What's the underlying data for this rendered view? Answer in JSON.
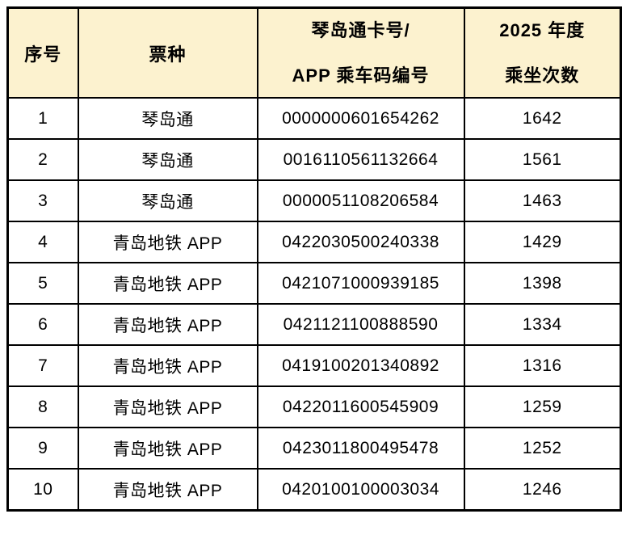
{
  "table": {
    "header": {
      "serial": "序号",
      "ticket_type": "票种",
      "card_number_line1": "琴岛通卡号/",
      "card_number_line2": "APP 乘车码编号",
      "ride_count_line1": "2025 年度",
      "ride_count_line2": "乘坐次数"
    },
    "rows": [
      {
        "serial": "1",
        "ticket_type": "琴岛通",
        "card_number": "0000000601654262",
        "ride_count": "1642"
      },
      {
        "serial": "2",
        "ticket_type": "琴岛通",
        "card_number": "0016110561132664",
        "ride_count": "1561"
      },
      {
        "serial": "3",
        "ticket_type": "琴岛通",
        "card_number": "0000051108206584",
        "ride_count": "1463"
      },
      {
        "serial": "4",
        "ticket_type": "青岛地铁 APP",
        "card_number": "0422030500240338",
        "ride_count": "1429"
      },
      {
        "serial": "5",
        "ticket_type": "青岛地铁 APP",
        "card_number": "0421071000939185",
        "ride_count": "1398"
      },
      {
        "serial": "6",
        "ticket_type": "青岛地铁 APP",
        "card_number": "0421121100888590",
        "ride_count": "1334"
      },
      {
        "serial": "7",
        "ticket_type": "青岛地铁 APP",
        "card_number": "0419100201340892",
        "ride_count": "1316"
      },
      {
        "serial": "8",
        "ticket_type": "青岛地铁 APP",
        "card_number": "0422011600545909",
        "ride_count": "1259"
      },
      {
        "serial": "9",
        "ticket_type": "青岛地铁 APP",
        "card_number": "0423011800495478",
        "ride_count": "1252"
      },
      {
        "serial": "10",
        "ticket_type": "青岛地铁 APP",
        "card_number": "0420100100003034",
        "ride_count": "1246"
      }
    ],
    "colors": {
      "header_bg": "#FCF2CF",
      "border": "#000000",
      "text": "#000000",
      "row_bg": "#FFFFFF"
    }
  }
}
